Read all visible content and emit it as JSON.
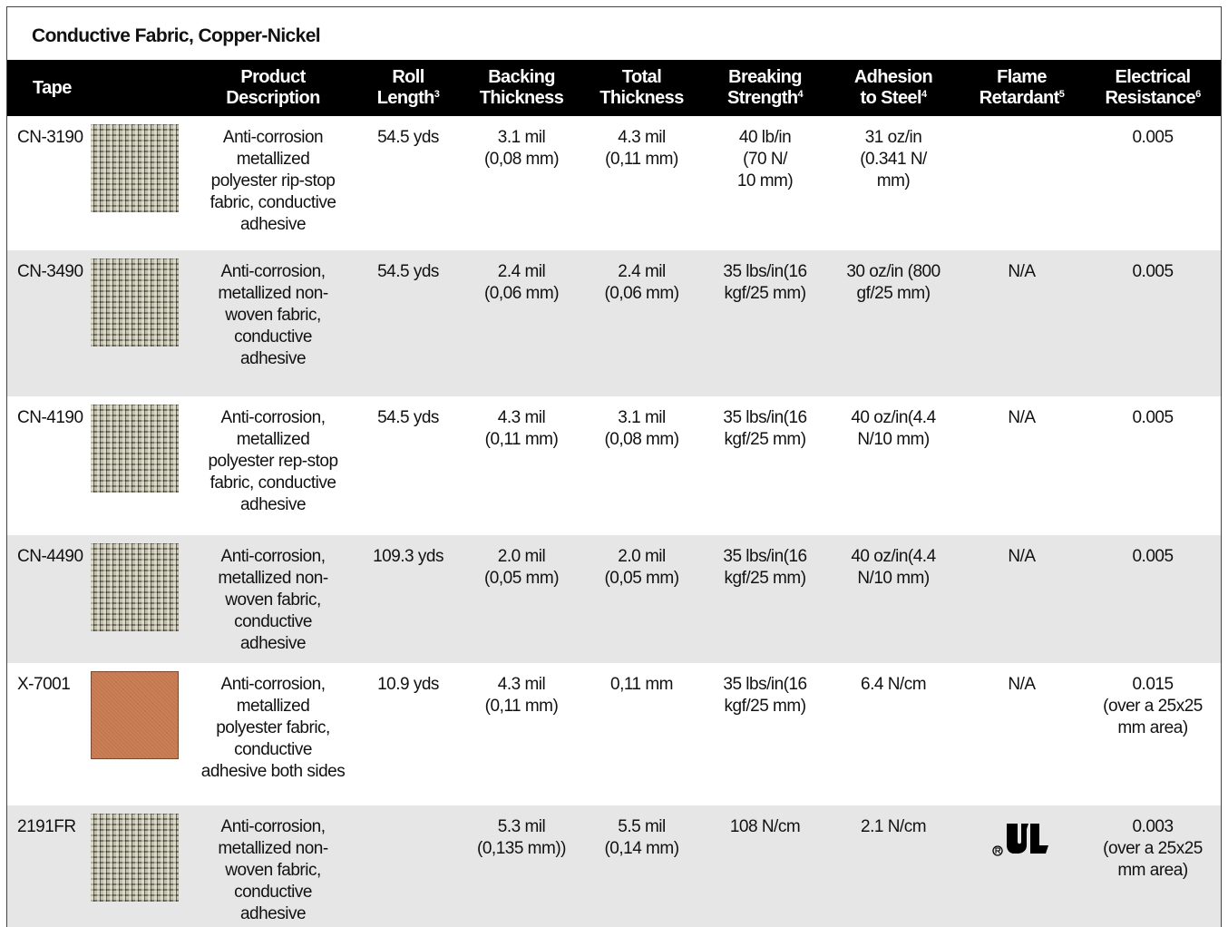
{
  "header": {
    "title": "Conductive Fabric, Copper-Nickel"
  },
  "table": {
    "columns": [
      {
        "text": "Tape"
      },
      {
        "text": "Product\nDescription"
      },
      {
        "text": "Roll\nLength",
        "note": "3"
      },
      {
        "text": "Backing\nThickness"
      },
      {
        "text": "Total\nThickness"
      },
      {
        "text": "Breaking\nStrength",
        "note": "4"
      },
      {
        "text": "Adhesion\nto Steel",
        "note": "4"
      },
      {
        "text": "Flame\nRetardant",
        "note": "5"
      },
      {
        "text": "Electrical\nResistance",
        "note": "6"
      }
    ],
    "rows": [
      {
        "tape": "CN-3190",
        "swatch": "#8c8672",
        "cells": [
          "Anti-corrosion\nmetallized\npolyester rip-stop\nfabric, conductive\nadhesive",
          "54.5 yds",
          "3.1 mil\n(0,08 mm)",
          "4.3 mil\n(0,11 mm)",
          "40 lb/in\n(70 N/\n10 mm)",
          "31 oz/in\n(0.341 N/\nmm)",
          null,
          "0.005"
        ]
      },
      {
        "tape": "CN-3490",
        "swatch": "#8c8672",
        "cells": [
          "Anti-corrosion,\nmetallized non-\nwoven fabric,\nconductive\nadhesive",
          "54.5 yds",
          "2.4 mil\n(0,06 mm)",
          "2.4 mil\n(0,06 mm)",
          "35 lbs/in(16\nkgf/25 mm)",
          "30 oz/in (800\ngf/25 mm)",
          "N/A",
          "0.005"
        ]
      },
      {
        "tape": "CN-4190",
        "swatch": "#8c8672",
        "cells": [
          "Anti-corrosion,\nmetallized\npolyester rep-stop\nfabric, conductive\nadhesive",
          "54.5 yds",
          "4.3 mil\n(0,11 mm)",
          "3.1 mil\n(0,08 mm)",
          "35 lbs/in(16\nkgf/25 mm)",
          "40 oz/in(4.4\nN/10 mm)",
          "N/A",
          "0.005"
        ]
      },
      {
        "tape": "CN-4490",
        "swatch": "#8c8672",
        "cells": [
          "Anti-corrosion,\nmetallized non-\nwoven fabric,\nconductive\nadhesive",
          "109.3 yds",
          "2.0 mil\n(0,05 mm)",
          "2.0 mil\n(0,05 mm)",
          "35 lbs/in(16\nkgf/25 mm)",
          "40 oz/in(4.4\nN/10 mm)",
          "N/A",
          "0.005"
        ]
      },
      {
        "tape": "X-7001",
        "swatch": "#c97a50",
        "cells": [
          "Anti-corrosion,\nmetallized\npolyester fabric,\nconductive\nadhesive both sides",
          "10.9 yds",
          "4.3 mil\n(0,11 mm)",
          "0,11 mm",
          "35 lbs/in(16\nkgf/25 mm)",
          "6.4 N/cm",
          "N/A",
          "0.015\n(over a 25x25\nmm area)"
        ]
      },
      {
        "tape": "2191FR",
        "swatch": "#8c8672",
        "cells": [
          "Anti-corrosion,\nmetallized non-\nwoven fabric,\nconductive\nadhesive",
          null,
          "5.3 mil\n(0,135 mm))",
          "5.5 mil\n(0,14 mm)",
          "108 N/cm",
          "2.1 N/cm",
          {
            "mark": "ul"
          },
          "0.003\n(over a 25x25\nmm area)"
        ]
      }
    ]
  }
}
